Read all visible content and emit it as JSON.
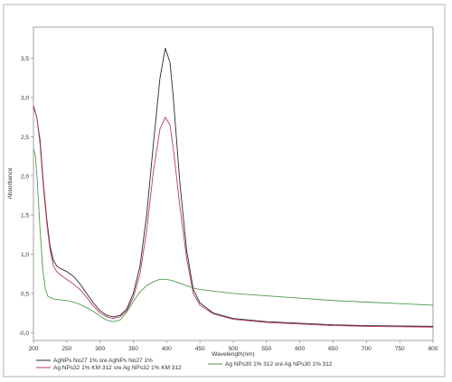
{
  "chart_data": {
    "type": "line",
    "xlabel": "Wavelength(nm)",
    "ylabel": "Absorbance",
    "xlim": [
      200,
      800
    ],
    "ylim": [
      -0.1,
      3.9
    ],
    "xticks": [
      "200",
      "250",
      "300",
      "350",
      "400",
      "450",
      "500",
      "550",
      "600",
      "650",
      "700",
      "750",
      "800"
    ],
    "yticks": [
      "-0,0",
      "0,5",
      "1,0",
      "1,5",
      "2,0",
      "2,5",
      "3,0",
      "3,5"
    ],
    "ytick_values": [
      0,
      0.5,
      1.0,
      1.5,
      2.0,
      2.5,
      3.0,
      3.5
    ],
    "grid": false,
    "legend_position": "bottom",
    "series": [
      {
        "name": "AgNPs No27 1% sre AgNPs No27 1%",
        "color": "#2a2a2a",
        "points": [
          [
            200,
            2.88
          ],
          [
            205,
            2.75
          ],
          [
            210,
            2.45
          ],
          [
            215,
            1.9
          ],
          [
            220,
            1.45
          ],
          [
            225,
            1.1
          ],
          [
            230,
            0.92
          ],
          [
            235,
            0.85
          ],
          [
            240,
            0.82
          ],
          [
            250,
            0.78
          ],
          [
            260,
            0.72
          ],
          [
            270,
            0.62
          ],
          [
            280,
            0.5
          ],
          [
            290,
            0.38
          ],
          [
            300,
            0.28
          ],
          [
            310,
            0.22
          ],
          [
            320,
            0.2
          ],
          [
            330,
            0.22
          ],
          [
            340,
            0.3
          ],
          [
            350,
            0.5
          ],
          [
            360,
            0.85
          ],
          [
            370,
            1.5
          ],
          [
            380,
            2.4
          ],
          [
            390,
            3.25
          ],
          [
            398,
            3.63
          ],
          [
            405,
            3.45
          ],
          [
            410,
            3.0
          ],
          [
            420,
            1.9
          ],
          [
            430,
            1.05
          ],
          [
            440,
            0.55
          ],
          [
            450,
            0.38
          ],
          [
            470,
            0.25
          ],
          [
            500,
            0.18
          ],
          [
            550,
            0.14
          ],
          [
            600,
            0.12
          ],
          [
            650,
            0.1
          ],
          [
            700,
            0.09
          ],
          [
            750,
            0.085
          ],
          [
            800,
            0.08
          ]
        ]
      },
      {
        "name": "Ag NPs32 1% KM 312 sre Ag NPs32 1% KM 312",
        "color": "#c0396a",
        "points": [
          [
            200,
            2.9
          ],
          [
            205,
            2.75
          ],
          [
            210,
            2.4
          ],
          [
            215,
            1.85
          ],
          [
            220,
            1.4
          ],
          [
            225,
            1.05
          ],
          [
            230,
            0.85
          ],
          [
            235,
            0.78
          ],
          [
            240,
            0.74
          ],
          [
            250,
            0.68
          ],
          [
            260,
            0.62
          ],
          [
            270,
            0.55
          ],
          [
            280,
            0.45
          ],
          [
            290,
            0.34
          ],
          [
            300,
            0.25
          ],
          [
            310,
            0.2
          ],
          [
            320,
            0.18
          ],
          [
            330,
            0.2
          ],
          [
            340,
            0.28
          ],
          [
            350,
            0.45
          ],
          [
            360,
            0.75
          ],
          [
            370,
            1.3
          ],
          [
            380,
            2.05
          ],
          [
            390,
            2.6
          ],
          [
            398,
            2.75
          ],
          [
            405,
            2.65
          ],
          [
            410,
            2.35
          ],
          [
            420,
            1.6
          ],
          [
            430,
            0.95
          ],
          [
            440,
            0.5
          ],
          [
            450,
            0.35
          ],
          [
            470,
            0.24
          ],
          [
            500,
            0.17
          ],
          [
            550,
            0.13
          ],
          [
            600,
            0.11
          ],
          [
            650,
            0.09
          ],
          [
            700,
            0.08
          ],
          [
            750,
            0.075
          ],
          [
            800,
            0.07
          ]
        ]
      },
      {
        "name": "Ag NPs30 1% 312 sre Ag NPs30 1% 312",
        "color": "#4e9a4e",
        "points": [
          [
            200,
            2.35
          ],
          [
            203,
            2.25
          ],
          [
            206,
            1.9
          ],
          [
            210,
            1.3
          ],
          [
            214,
            0.8
          ],
          [
            218,
            0.55
          ],
          [
            222,
            0.46
          ],
          [
            230,
            0.43
          ],
          [
            240,
            0.42
          ],
          [
            250,
            0.41
          ],
          [
            260,
            0.39
          ],
          [
            270,
            0.36
          ],
          [
            280,
            0.32
          ],
          [
            290,
            0.27
          ],
          [
            300,
            0.21
          ],
          [
            310,
            0.16
          ],
          [
            320,
            0.14
          ],
          [
            330,
            0.16
          ],
          [
            340,
            0.26
          ],
          [
            350,
            0.4
          ],
          [
            360,
            0.52
          ],
          [
            370,
            0.6
          ],
          [
            380,
            0.65
          ],
          [
            390,
            0.68
          ],
          [
            400,
            0.68
          ],
          [
            410,
            0.66
          ],
          [
            420,
            0.63
          ],
          [
            430,
            0.6
          ],
          [
            440,
            0.57
          ],
          [
            450,
            0.55
          ],
          [
            480,
            0.52
          ],
          [
            500,
            0.5
          ],
          [
            550,
            0.47
          ],
          [
            600,
            0.44
          ],
          [
            650,
            0.41
          ],
          [
            700,
            0.39
          ],
          [
            750,
            0.37
          ],
          [
            800,
            0.35
          ]
        ]
      }
    ]
  }
}
